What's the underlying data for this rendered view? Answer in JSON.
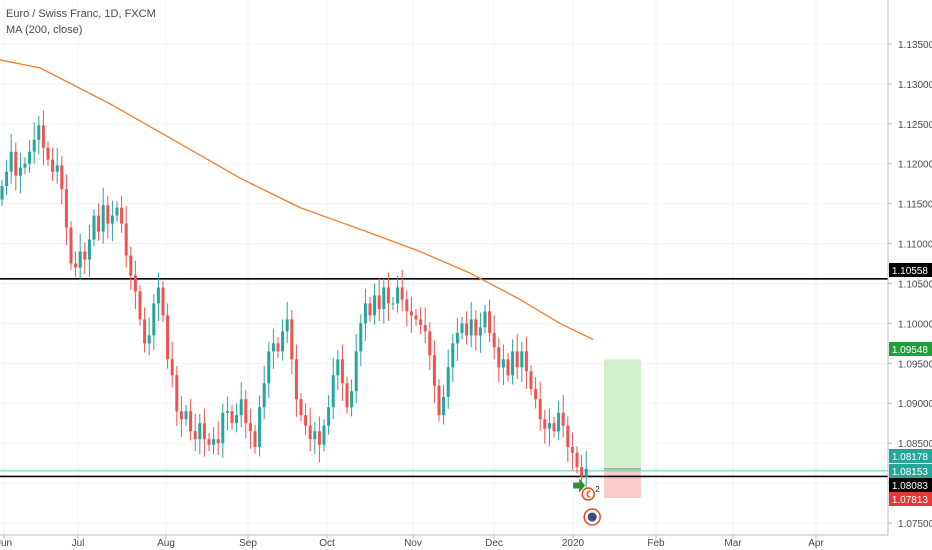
{
  "legend": {
    "title": "Euro / Swiss Franc, 1D, FXCM",
    "indicator": "MA (200, close)"
  },
  "colors": {
    "up": "#26a69a",
    "down": "#ef5350",
    "ma": "#f57c2a",
    "level_line": "#000000",
    "current_line": "#4dd0c4",
    "profit_zone": "#d2efcc",
    "loss_zone": "#fbcccc",
    "target_badge": "#1f9e3a",
    "current_badge": "#26a69a",
    "level_badge": "#000000",
    "stop_badge": "#e53935"
  },
  "chart_data": {
    "type": "candlestick",
    "title": "Euro / Swiss Franc, 1D, FXCM",
    "ylim": [
      1.0735,
      1.1405
    ],
    "x_ticks": [
      "Jun",
      "Jul",
      "Aug",
      "Sep",
      "Oct",
      "Nov",
      "Dec",
      "2020",
      "Feb",
      "Mar",
      "Apr"
    ],
    "y_ticks": [
      "1.07500",
      "1.08000",
      "1.08500",
      "1.09000",
      "1.09500",
      "1.10000",
      "1.10500",
      "1.11000",
      "1.11500",
      "1.12000",
      "1.12500",
      "1.13000",
      "1.13500"
    ],
    "candle_close": [
      1.1172,
      1.119,
      1.1215,
      1.1185,
      1.1195,
      1.12,
      1.1215,
      1.123,
      1.1248,
      1.122,
      1.1205,
      1.119,
      1.1198,
      1.1168,
      1.112,
      1.1075,
      1.107,
      1.109,
      1.108,
      1.1105,
      1.1135,
      1.1115,
      1.1148,
      1.1125,
      1.1135,
      1.1145,
      1.1125,
      1.1085,
      1.106,
      1.104,
      1.1005,
      1.0975,
      1.0985,
      1.1025,
      1.1045,
      1.101,
      1.0955,
      1.0935,
      1.089,
      1.088,
      1.089,
      1.0865,
      1.0855,
      1.0875,
      1.0855,
      1.0848,
      1.0855,
      1.085,
      1.0888,
      1.089,
      1.0875,
      1.0885,
      1.0905,
      1.0875,
      1.0865,
      1.0845,
      1.0895,
      1.0925,
      1.0965,
      1.0975,
      1.0965,
      1.099,
      1.1005,
      1.0955,
      1.0905,
      1.0885,
      1.0872,
      1.0855,
      1.0865,
      1.0848,
      1.0872,
      1.0895,
      1.0935,
      1.0955,
      1.0925,
      1.0895,
      1.0915,
      1.0965,
      1.1,
      1.1025,
      1.101,
      1.1035,
      1.1018,
      1.1045,
      1.1025,
      1.1025,
      1.1045,
      1.103,
      1.1015,
      1.101,
      1.1005,
      1.0998,
      1.099,
      1.096,
      1.0922,
      1.0885,
      1.0908,
      1.0945,
      1.0975,
      1.0988,
      1.1,
      1.0985,
      1.1005,
      1.0985,
      1.0995,
      1.1015,
      1.0988,
      1.097,
      1.0945,
      1.0955,
      1.0935,
      1.0965,
      1.0945,
      1.0965,
      1.094,
      1.0918,
      1.0905,
      1.088,
      1.0868,
      1.0875,
      1.0865,
      1.0888,
      1.0872,
      1.0845,
      1.0838,
      1.082,
      1.0808,
      1.0818
    ]
  },
  "price_badges": [
    {
      "label": "1.10558",
      "kind": "level"
    },
    {
      "label": "1.09548",
      "kind": "target"
    },
    {
      "label": "1.08178",
      "kind": "current"
    },
    {
      "label": "1.08153",
      "kind": "current"
    },
    {
      "label": "1.08083",
      "kind": "level"
    },
    {
      "label": "1.07813",
      "kind": "stop"
    }
  ],
  "markers": {
    "earnings_count": "2"
  }
}
